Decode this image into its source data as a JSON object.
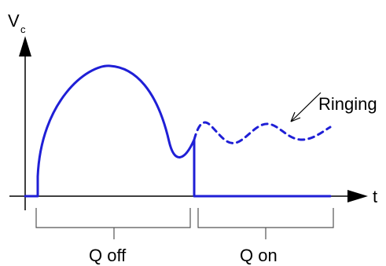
{
  "axes": {
    "y_label_main": "V",
    "y_label_sub": "c",
    "x_label": "t"
  },
  "annotations": {
    "ringing": "Ringing"
  },
  "intervals": [
    {
      "label": "Q off"
    },
    {
      "label": "Q on"
    }
  ],
  "colors": {
    "waveform": "#1f1fd6",
    "axes": "#000000",
    "brackets": "#555555"
  }
}
